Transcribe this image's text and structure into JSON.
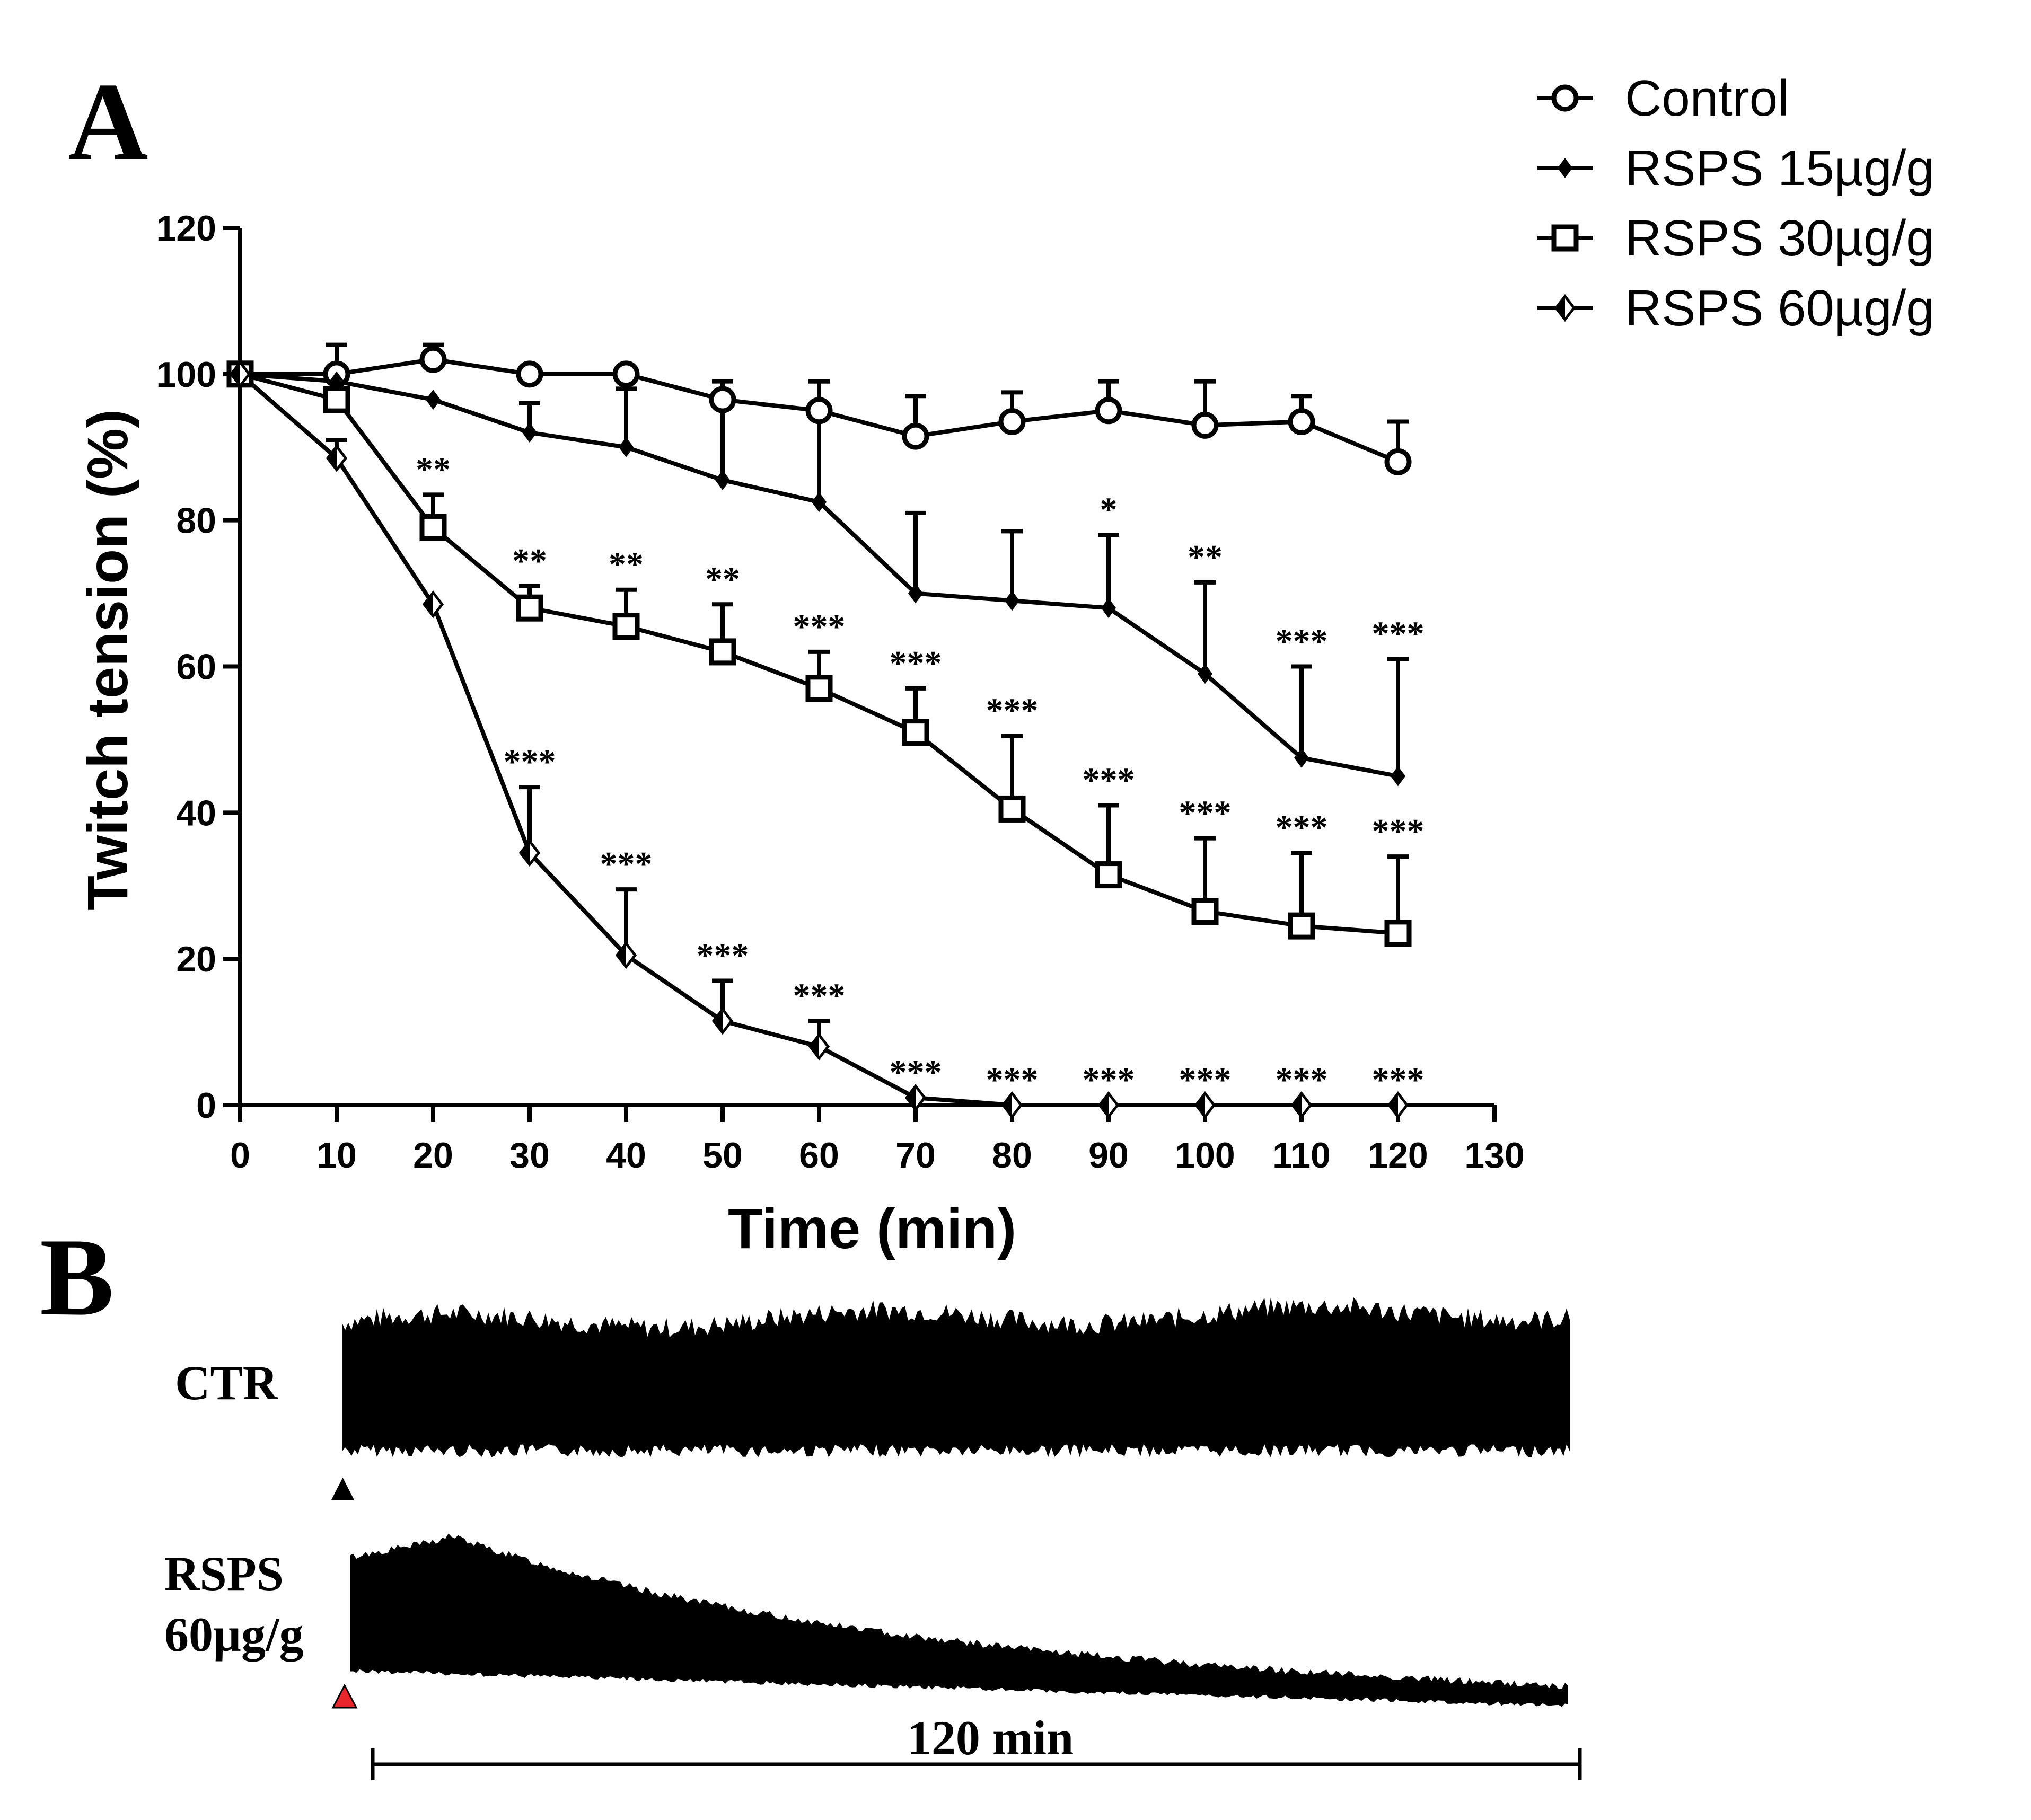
{
  "panels": {
    "a_label": "A",
    "b_label": "B"
  },
  "chart_data": {
    "type": "line",
    "title": "",
    "xlabel": "Time (min)",
    "ylabel": "Twitch tension (%)",
    "xlim": [
      0,
      130
    ],
    "ylim": [
      0,
      120
    ],
    "xticks": [
      0,
      10,
      20,
      30,
      40,
      50,
      60,
      70,
      80,
      90,
      100,
      110,
      120,
      130
    ],
    "yticks": [
      0,
      20,
      40,
      60,
      80,
      100,
      120
    ],
    "grid": false,
    "legend_position": "top-right",
    "x": [
      0,
      10,
      20,
      30,
      40,
      50,
      60,
      70,
      80,
      90,
      100,
      110,
      120
    ],
    "series": [
      {
        "name": "Control",
        "marker": "open-circle",
        "values": [
          100,
          100,
          102,
          100,
          100,
          96.5,
          95,
          91.5,
          93.5,
          95,
          93,
          93.5,
          88
        ],
        "error": [
          0,
          4,
          2,
          0,
          0,
          2.5,
          4,
          5.5,
          4,
          4,
          6,
          3.5,
          5.5
        ],
        "significance": [
          "",
          "",
          "",
          "",
          "",
          "",
          "",
          "",
          "",
          "",
          "",
          "",
          ""
        ]
      },
      {
        "name": "RSPS 15µg/g",
        "marker": "filled-diamond",
        "values": [
          100,
          99,
          96.5,
          92,
          90,
          85.5,
          82.5,
          70,
          69,
          68,
          59,
          47.5,
          45
        ],
        "error": [
          0,
          0,
          0,
          4,
          8,
          11,
          16.5,
          11,
          9.5,
          10,
          12.5,
          12.5,
          16
        ],
        "significance": [
          "",
          "",
          "",
          "",
          "",
          "",
          "",
          "",
          "",
          "*",
          "**",
          "***",
          "***"
        ]
      },
      {
        "name": "RSPS 30µg/g",
        "marker": "open-square",
        "values": [
          100,
          96.5,
          79,
          68,
          65.5,
          62,
          57,
          51,
          40.5,
          31.5,
          26.5,
          24.5,
          23.5
        ],
        "error": [
          0,
          0,
          4.5,
          3,
          5,
          6.5,
          5,
          6,
          10,
          9.5,
          10,
          10,
          10.5
        ],
        "significance": [
          "",
          "",
          "**",
          "**",
          "**",
          "**",
          "***",
          "***",
          "***",
          "***",
          "***",
          "***",
          "***"
        ]
      },
      {
        "name": "RSPS 60µg/g",
        "marker": "half-diamond",
        "values": [
          100,
          88.5,
          68.5,
          34.5,
          20.5,
          11.5,
          8,
          1,
          0,
          0,
          0,
          0,
          0
        ],
        "error": [
          0,
          2.5,
          0,
          9,
          9,
          5.5,
          3.5,
          0,
          0,
          0,
          0,
          0,
          0
        ],
        "significance": [
          "",
          "",
          "",
          "***",
          "***",
          "***",
          "***",
          "***",
          "***",
          "***",
          "***",
          "***",
          "***"
        ]
      }
    ]
  },
  "traces": {
    "ctr_label": "CTR",
    "rsps_label_line1": "RSPS",
    "rsps_label_line2": "60µg/g",
    "scale_bar_label": "120 min",
    "ctr_marker_color": "#000000",
    "rsps_marker_color": "#e8262b"
  },
  "colors": {
    "ink": "#000000",
    "background": "#ffffff"
  }
}
